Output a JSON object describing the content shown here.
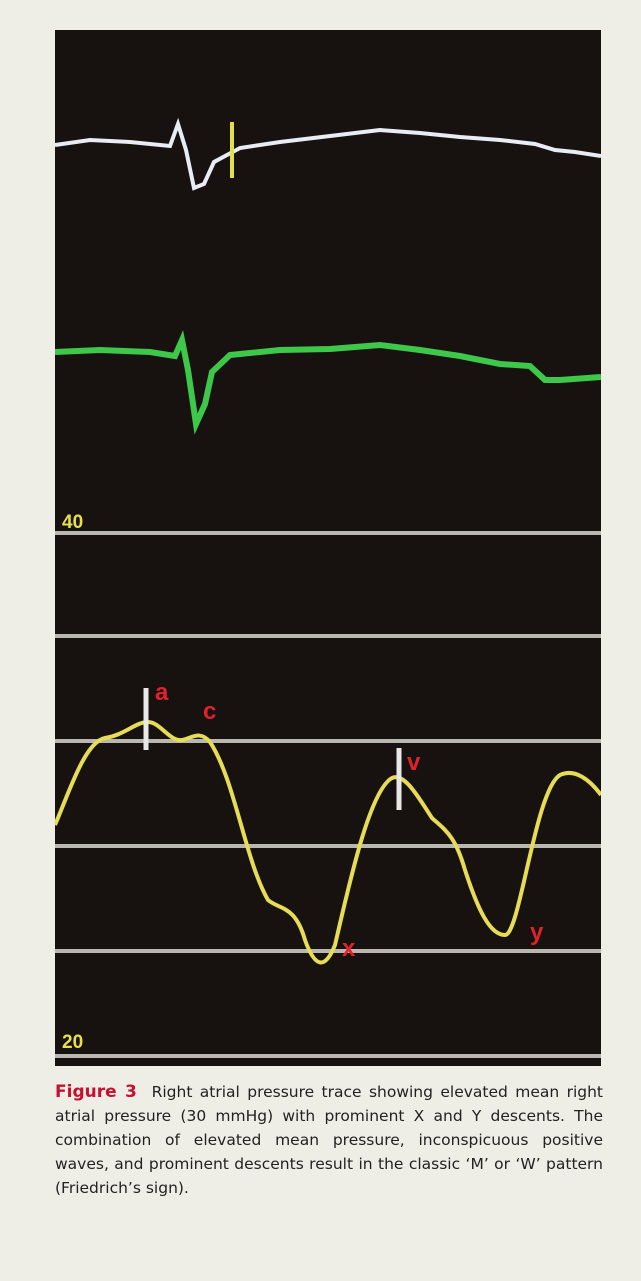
{
  "figure": {
    "scale_labels": [
      "40",
      "20"
    ],
    "wave_labels": {
      "a": "a",
      "c": "c",
      "v": "v",
      "x": "x",
      "y": "y"
    },
    "label": "Figure 3",
    "caption": "Right atrial pressure trace showing elevated mean right atrial pressure (30 mmHg) with prominent X and Y descents. The combination of elevated mean pressure, inconspicuous positive waves, and prominent descents result in the classic ‘M’ or ‘W’ pattern (Friedrich’s sign)."
  }
}
